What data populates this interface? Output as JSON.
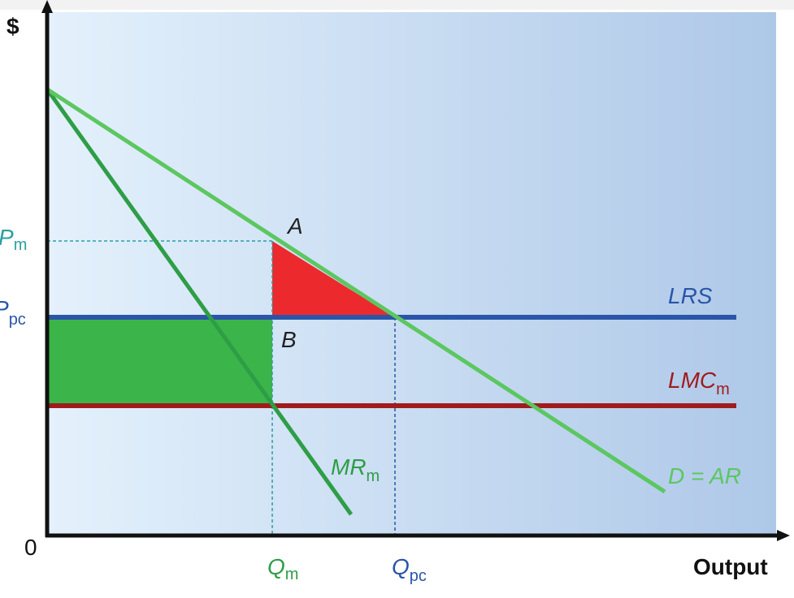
{
  "axes": {
    "y_label": "$",
    "origin": "0",
    "x_label": "Output"
  },
  "price_labels": [
    {
      "main": "P",
      "sub": "m"
    },
    {
      "main": "P",
      "sub": "pc"
    }
  ],
  "quantity_labels": [
    {
      "main": "Q",
      "sub": "m"
    },
    {
      "main": "Q",
      "sub": "pc"
    }
  ],
  "points": [
    "A",
    "B"
  ],
  "curves": [
    {
      "main": "LRS"
    },
    {
      "main": "LMC",
      "sub": "m"
    },
    {
      "main": "MR",
      "sub": "m"
    },
    {
      "main": "D = AR"
    }
  ]
}
